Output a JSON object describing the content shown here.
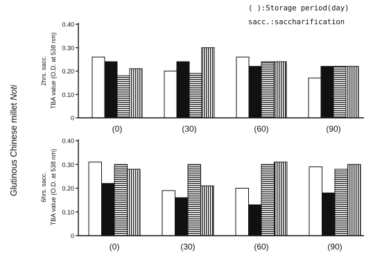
{
  "figure": {
    "side_title_main": "Glutinous Chinese millet ",
    "side_title_italic": "Noti",
    "legend_line1": "( ):Storage period(day)",
    "legend_line2": "sacc.:saccharification"
  },
  "chart_data": [
    {
      "type": "bar",
      "ylabel_line1": "2hrs. sacc.",
      "ylabel_line2": "TBA value (O.D. at 538 nm)",
      "categories": [
        "(0)",
        "(30)",
        "(60)",
        "(90)"
      ],
      "ylim": [
        0,
        0.4
      ],
      "yticks": [
        "0",
        "0.10",
        "0.20",
        "0.30",
        "0.40"
      ],
      "grid": false,
      "series": [
        {
          "values": [
            0.26,
            0.2,
            0.26,
            0.17
          ],
          "pattern": "white"
        },
        {
          "values": [
            0.24,
            0.24,
            0.22,
            0.22
          ],
          "pattern": "black"
        },
        {
          "values": [
            0.18,
            0.19,
            0.24,
            0.22
          ],
          "pattern": "horizontal-lines"
        },
        {
          "values": [
            0.21,
            0.3,
            0.24,
            0.22
          ],
          "pattern": "vertical-lines"
        }
      ]
    },
    {
      "type": "bar",
      "ylabel_line1": "6hrs. sacc.",
      "ylabel_line2": "TBA value (O.D. at 538 nm)",
      "categories": [
        "(0)",
        "(30)",
        "(60)",
        "(90)"
      ],
      "ylim": [
        0,
        0.4
      ],
      "yticks": [
        "0",
        "0.10",
        "0.20",
        "0.30",
        "0.40"
      ],
      "grid": false,
      "series": [
        {
          "values": [
            0.31,
            0.19,
            0.2,
            0.29
          ],
          "pattern": "white"
        },
        {
          "values": [
            0.22,
            0.16,
            0.13,
            0.18
          ],
          "pattern": "black"
        },
        {
          "values": [
            0.3,
            0.3,
            0.3,
            0.28
          ],
          "pattern": "horizontal-lines"
        },
        {
          "values": [
            0.28,
            0.21,
            0.31,
            0.3
          ],
          "pattern": "vertical-lines"
        }
      ]
    }
  ]
}
